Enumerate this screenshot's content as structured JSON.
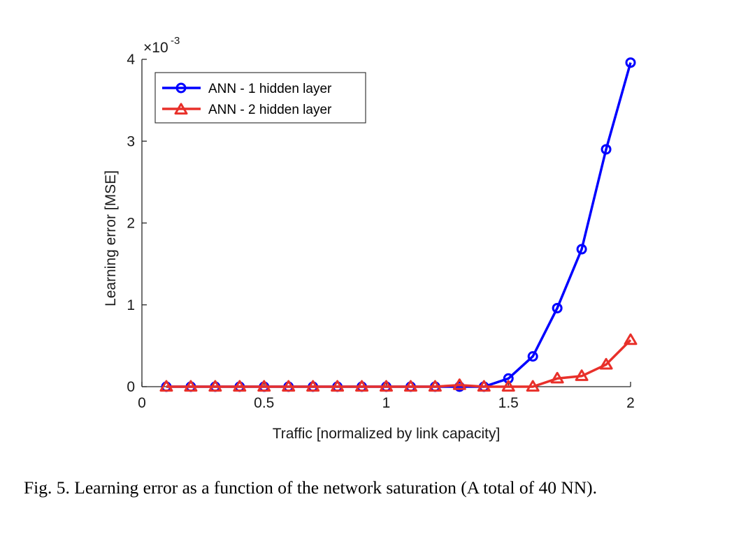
{
  "figure": {
    "caption": "Fig. 5.  Learning error as a function of the network saturation (A total of 40 NN)."
  },
  "chart_data": {
    "type": "line",
    "xlabel": "Traffic [normalized by link capacity]",
    "ylabel": "Learning error [MSE]",
    "y_exponent_label": "×10",
    "y_exponent_power": "-3",
    "xlim": [
      0,
      2
    ],
    "ylim": [
      0,
      4
    ],
    "x_ticks": [
      0,
      0.5,
      1,
      1.5,
      2
    ],
    "x_tick_labels": [
      "0",
      "0.5",
      "1",
      "1.5",
      "2"
    ],
    "y_ticks": [
      0,
      1,
      2,
      3,
      4
    ],
    "y_tick_labels": [
      "0",
      "1",
      "2",
      "3",
      "4"
    ],
    "y_scale_note": "values in units of 1e-3",
    "grid": false,
    "legend_position": "top-left",
    "x": [
      0.1,
      0.2,
      0.3,
      0.4,
      0.5,
      0.6,
      0.7,
      0.8,
      0.9,
      1.0,
      1.1,
      1.2,
      1.3,
      1.4,
      1.5,
      1.6,
      1.7,
      1.8,
      1.9,
      2.0
    ],
    "series": [
      {
        "name": "ANN - 1 hidden layer",
        "color": "#0000ff",
        "marker": "circle",
        "values": [
          0,
          0,
          0,
          0,
          0,
          0,
          0,
          0,
          0,
          0,
          0,
          0,
          0,
          0,
          0.1,
          0.37,
          0.96,
          1.68,
          2.9,
          3.96
        ]
      },
      {
        "name": "ANN - 2 hidden layer",
        "color": "#e8302a",
        "marker": "triangle",
        "values": [
          0,
          0,
          0,
          0,
          0,
          0,
          0,
          0,
          0,
          0,
          0,
          0,
          0.02,
          0,
          0,
          0,
          0.1,
          0.13,
          0.27,
          0.57
        ]
      }
    ]
  }
}
